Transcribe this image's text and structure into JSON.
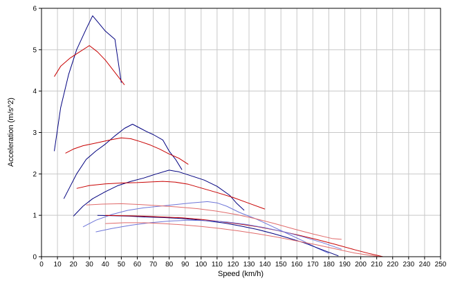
{
  "chart_data": {
    "type": "line",
    "title": "",
    "xlabel": "Speed (km/h)",
    "ylabel": "Acceleration (m/s^2)",
    "xlim": [
      0,
      250
    ],
    "ylim": [
      0,
      6
    ],
    "xticks": [
      0,
      10,
      20,
      30,
      40,
      50,
      60,
      70,
      80,
      90,
      100,
      110,
      120,
      130,
      140,
      150,
      160,
      170,
      180,
      190,
      200,
      210,
      220,
      230,
      240,
      250
    ],
    "yticks": [
      0,
      1,
      2,
      3,
      4,
      5,
      6
    ],
    "grid": true,
    "legend": "none",
    "colors": {
      "blue": "#00007f",
      "red": "#c80000",
      "light_blue": "#6d75d8",
      "light_red": "#e06a6a",
      "grid": "#c8c8c8"
    },
    "series": [
      {
        "color": "blue",
        "x": [
          8,
          12,
          17,
          22,
          28,
          32,
          35,
          40,
          46,
          50
        ],
        "y": [
          2.55,
          3.6,
          4.4,
          5.0,
          5.5,
          5.82,
          5.68,
          5.45,
          5.25,
          4.2
        ]
      },
      {
        "color": "red",
        "x": [
          8,
          12,
          18,
          24,
          30,
          35,
          40,
          46,
          52
        ],
        "y": [
          4.35,
          4.6,
          4.8,
          4.95,
          5.1,
          4.95,
          4.75,
          4.45,
          4.15
        ]
      },
      {
        "color": "blue",
        "x": [
          14,
          18,
          22,
          28,
          34,
          40,
          46,
          52,
          57,
          62,
          66,
          70,
          76,
          80,
          84,
          88
        ],
        "y": [
          1.4,
          1.7,
          2.0,
          2.35,
          2.55,
          2.72,
          2.92,
          3.1,
          3.2,
          3.1,
          3.02,
          2.95,
          2.82,
          2.55,
          2.35,
          2.1
        ]
      },
      {
        "color": "red",
        "x": [
          15,
          20,
          26,
          32,
          38,
          44,
          50,
          56,
          62,
          68,
          74,
          80,
          86,
          92
        ],
        "y": [
          2.5,
          2.6,
          2.68,
          2.73,
          2.78,
          2.83,
          2.87,
          2.85,
          2.78,
          2.7,
          2.6,
          2.48,
          2.38,
          2.23
        ]
      },
      {
        "color": "blue",
        "x": [
          20,
          26,
          32,
          40,
          48,
          56,
          64,
          72,
          80,
          86,
          94,
          102,
          110,
          118,
          122,
          127
        ],
        "y": [
          0.98,
          1.22,
          1.4,
          1.57,
          1.72,
          1.82,
          1.9,
          2.0,
          2.09,
          2.05,
          1.95,
          1.85,
          1.7,
          1.48,
          1.3,
          1.12
        ]
      },
      {
        "color": "red",
        "x": [
          22,
          30,
          40,
          50,
          60,
          70,
          76,
          84,
          92,
          100,
          110,
          120,
          130,
          140
        ],
        "y": [
          1.65,
          1.72,
          1.76,
          1.78,
          1.79,
          1.81,
          1.82,
          1.8,
          1.75,
          1.66,
          1.55,
          1.43,
          1.29,
          1.15
        ]
      },
      {
        "color": "light_blue",
        "x": [
          26,
          34,
          44,
          54,
          64,
          74,
          84,
          94,
          104,
          110,
          116,
          124,
          134,
          144,
          154,
          164,
          172,
          180
        ],
        "y": [
          0.72,
          0.88,
          1.02,
          1.12,
          1.18,
          1.22,
          1.26,
          1.3,
          1.33,
          1.3,
          1.22,
          1.07,
          0.92,
          0.74,
          0.56,
          0.38,
          0.22,
          0.08
        ]
      },
      {
        "color": "light_red",
        "x": [
          28,
          38,
          50,
          62,
          74,
          86,
          98,
          110,
          122,
          134,
          146,
          158,
          170,
          182,
          188
        ],
        "y": [
          1.25,
          1.27,
          1.28,
          1.26,
          1.23,
          1.2,
          1.16,
          1.1,
          1.02,
          0.92,
          0.8,
          0.67,
          0.55,
          0.44,
          0.42
        ]
      },
      {
        "color": "blue",
        "x": [
          35,
          45,
          55,
          65,
          75,
          85,
          95,
          105,
          115,
          125,
          135,
          145,
          155,
          165,
          175,
          186
        ],
        "y": [
          1.0,
          0.99,
          0.98,
          0.96,
          0.95,
          0.93,
          0.9,
          0.86,
          0.81,
          0.74,
          0.66,
          0.56,
          0.45,
          0.33,
          0.18,
          0.02
        ]
      },
      {
        "color": "red",
        "x": [
          40,
          52,
          64,
          76,
          88,
          100,
          112,
          124,
          136,
          148,
          160,
          172,
          184,
          196,
          206,
          214
        ],
        "y": [
          1.0,
          0.99,
          0.98,
          0.96,
          0.94,
          0.9,
          0.85,
          0.79,
          0.72,
          0.63,
          0.53,
          0.42,
          0.3,
          0.17,
          0.07,
          0.0
        ]
      },
      {
        "color": "light_blue",
        "x": [
          34,
          44,
          56,
          68,
          80,
          92,
          104,
          116,
          128,
          140,
          152,
          164,
          176,
          188
        ],
        "y": [
          0.6,
          0.68,
          0.76,
          0.82,
          0.86,
          0.88,
          0.87,
          0.84,
          0.78,
          0.7,
          0.6,
          0.48,
          0.34,
          0.18
        ]
      },
      {
        "color": "light_red",
        "x": [
          40,
          52,
          64,
          76,
          88,
          100,
          112,
          124,
          136,
          148,
          160,
          172,
          184,
          196,
          208,
          212
        ],
        "y": [
          0.8,
          0.82,
          0.82,
          0.8,
          0.77,
          0.73,
          0.68,
          0.62,
          0.55,
          0.47,
          0.38,
          0.29,
          0.19,
          0.09,
          0.02,
          0.0
        ]
      }
    ]
  }
}
